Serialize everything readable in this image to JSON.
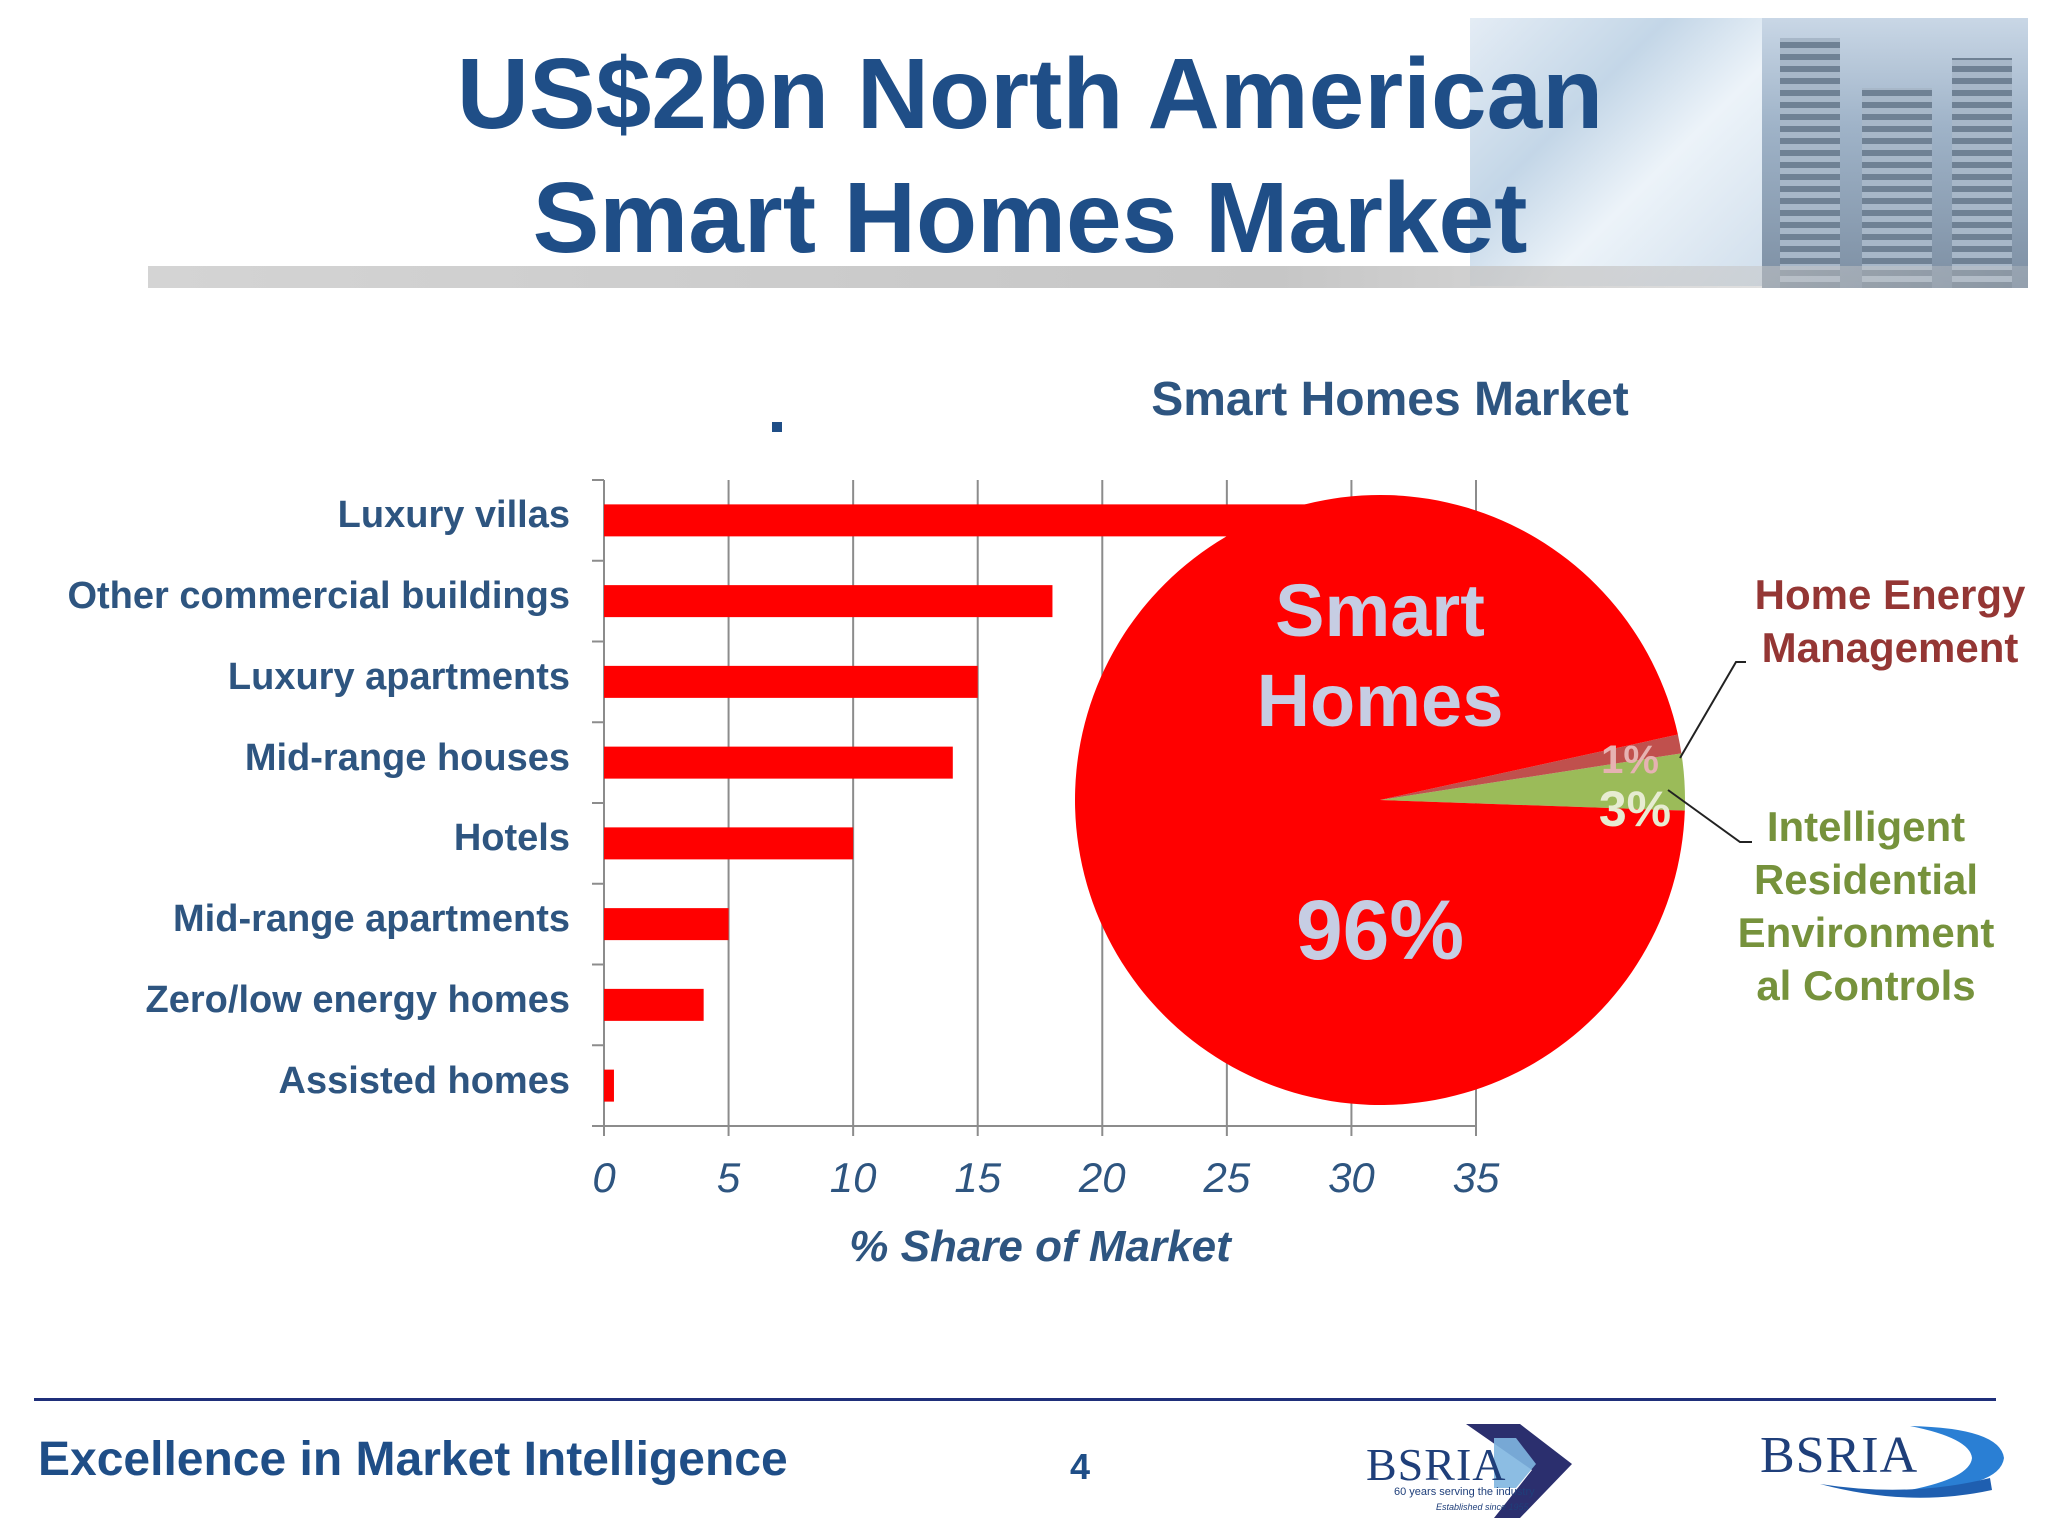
{
  "title_line1": "US$2bn North American",
  "title_line2": "Smart Homes Market",
  "chart_data": [
    {
      "type": "bar",
      "orientation": "horizontal",
      "categories": [
        "Luxury villas",
        "Other commercial buildings",
        "Luxury apartments",
        "Mid-range houses",
        "Hotels",
        "Mid-range apartments",
        "Zero/low energy homes",
        "Assisted homes"
      ],
      "values": [
        33,
        18,
        15,
        14,
        10,
        5,
        4,
        0.4
      ],
      "xlabel": "% Share of Market",
      "xlim": [
        0,
        35
      ],
      "x_ticks": [
        "0",
        "5",
        "10",
        "15",
        "20",
        "25",
        "30",
        "35"
      ],
      "grid": true,
      "bar_color": "#ff0000"
    },
    {
      "type": "pie",
      "title": "Smart Homes Market",
      "slices": [
        {
          "label": "Smart Homes",
          "value": 96,
          "display": "96%",
          "color": "#ff0000"
        },
        {
          "label": "Home Energy Management",
          "value": 1,
          "display": "1%",
          "color": "#c0504d"
        },
        {
          "label": "Intelligent Residential Environmental Controls",
          "value": 3,
          "display": "3%",
          "color": "#9bbb59"
        }
      ],
      "pie_label_line1": "Smart",
      "pie_label_line2": "Homes",
      "legend_hem_line1": "Home Energy",
      "legend_hem_line2": "Management",
      "legend_irec_line1": "Intelligent",
      "legend_irec_line2": "Residential",
      "legend_irec_line3": "Environment",
      "legend_irec_line4": "al Controls"
    }
  ],
  "footer": {
    "tagline": "Excellence in Market Intelligence",
    "page_number": "4",
    "logo_word": "BSRIA",
    "logo_sub1": "60 years serving the industry",
    "logo_sub2": "Established since 1955",
    "logo_word2": "BSRIA"
  }
}
